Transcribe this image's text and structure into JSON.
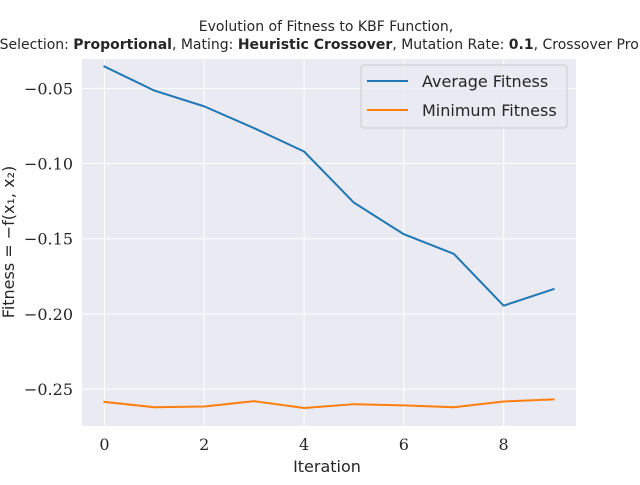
{
  "chart_data": {
    "type": "line",
    "title": "Evolution of Fitness to KBF Function,",
    "subtitle": {
      "selection_label": "Selection: ",
      "selection_value": "Proportional",
      "mating_label": ", Mating: ",
      "mating_value": "Heuristic Crossover",
      "mutation_label": ", Mutation Rate: ",
      "mutation_value": "0.1",
      "crossover_label": ", Crossover Prob:"
    },
    "xlabel": "Iteration",
    "ylabel": "Fitness = −f(x₁, x₂)",
    "x": [
      0,
      1,
      2,
      3,
      4,
      5,
      6,
      7,
      8,
      9
    ],
    "xlim": [
      -0.45,
      9.45
    ],
    "ylim": [
      -0.2745,
      -0.0305
    ],
    "xticks": [
      0,
      2,
      4,
      6,
      8
    ],
    "xtick_labels": [
      "0",
      "2",
      "4",
      "6",
      "8"
    ],
    "yticks": [
      -0.25,
      -0.2,
      -0.15,
      -0.1,
      -0.05
    ],
    "ytick_labels": [
      "−0.25",
      "−0.20",
      "−0.15",
      "−0.10",
      "−0.05"
    ],
    "grid": true,
    "legend_position": "top-right",
    "series": [
      {
        "name": "Average Fitness",
        "color": "#1f77b4",
        "values": [
          -0.0355,
          -0.0515,
          -0.062,
          -0.0765,
          -0.092,
          -0.126,
          -0.147,
          -0.16,
          -0.1945,
          -0.1835
        ]
      },
      {
        "name": "Minimum Fitness",
        "color": "#ff7f0e",
        "values": [
          -0.2585,
          -0.262,
          -0.2615,
          -0.258,
          -0.2625,
          -0.26,
          -0.2608,
          -0.262,
          -0.2582,
          -0.2568
        ]
      }
    ]
  }
}
